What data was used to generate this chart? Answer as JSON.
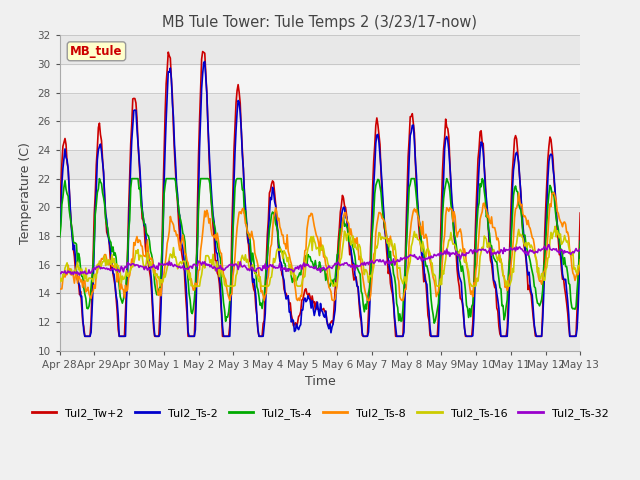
{
  "title": "MB Tule Tower: Tule Temps 2 (3/23/17-now)",
  "xlabel": "Time",
  "ylabel": "Temperature (C)",
  "ylim": [
    10,
    32
  ],
  "yticks": [
    10,
    12,
    14,
    16,
    18,
    20,
    22,
    24,
    26,
    28,
    30,
    32
  ],
  "xtick_labels": [
    "Apr 28",
    "Apr 29",
    "Apr 30",
    "May 1",
    "May 2",
    "May 3",
    "May 4",
    "May 5",
    "May 6",
    "May 7",
    "May 8",
    "May 9",
    "May 10",
    "May 11",
    "May 12",
    "May 13"
  ],
  "legend_label": "MB_tule",
  "series_colors": [
    "#cc0000",
    "#0000cc",
    "#00aa00",
    "#ff8800",
    "#cccc00",
    "#9900cc"
  ],
  "series_labels": [
    "Tul2_Tw+2",
    "Tul2_Ts-2",
    "Tul2_Ts-4",
    "Tul2_Ts-8",
    "Tul2_Ts-16",
    "Tul2_Ts-32"
  ],
  "bg_color": "#f0f0f0",
  "plot_bg": "#ffffff",
  "stripe_colors": [
    "#e8e8e8",
    "#f4f4f4"
  ],
  "n_points": 500,
  "figsize": [
    6.4,
    4.8
  ],
  "dpi": 100
}
